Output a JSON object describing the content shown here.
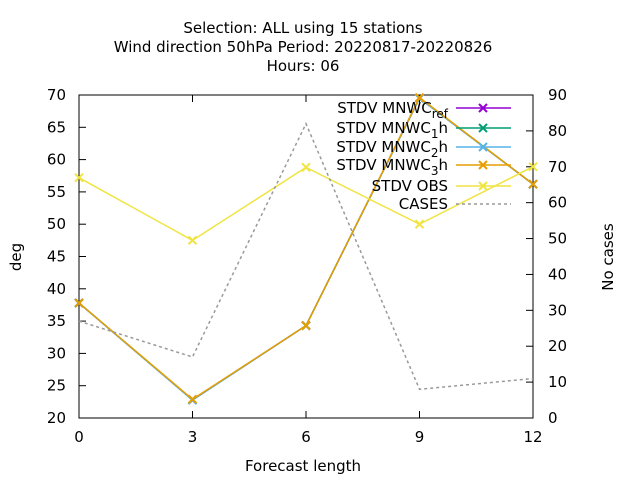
{
  "chart_data": {
    "type": "line",
    "title_lines": [
      "Selection: ALL using    15 stations",
      "Wind direction 50hPa   Period: 20220817-20220826",
      "Hours:  06"
    ],
    "xlabel": "Forecast length",
    "ylabel": "deg",
    "y2label": "No cases",
    "x": [
      0,
      3,
      6,
      9,
      12
    ],
    "xlim": [
      0,
      12
    ],
    "ylim": [
      20,
      70
    ],
    "y2lim": [
      0,
      90
    ],
    "xticks": [
      "0",
      "3",
      "6",
      "9",
      "12"
    ],
    "yticks": [
      "20",
      "25",
      "30",
      "35",
      "40",
      "45",
      "50",
      "55",
      "60",
      "65",
      "70"
    ],
    "y2ticks": [
      "0",
      "10",
      "20",
      "30",
      "40",
      "50",
      "60",
      "70",
      "80",
      "90"
    ],
    "grid": false,
    "legend_position": "top-right",
    "series": [
      {
        "name": "STDV MNWC_ref",
        "legend_main": "STDV MNWC",
        "legend_sub": "ref",
        "axis": "y",
        "color": "#9400d3",
        "marker": "x",
        "dash": "",
        "values": [
          37.8,
          22.8,
          34.3,
          69.5,
          56.2
        ]
      },
      {
        "name": "STDV MNWC_1h",
        "legend_main": "STDV MNWC",
        "legend_sub": "1",
        "legend_suffix": "h",
        "axis": "y",
        "color": "#009e73",
        "marker": "x",
        "dash": "",
        "values": [
          37.8,
          22.8,
          34.3,
          69.5,
          56.2
        ]
      },
      {
        "name": "STDV MNWC_2h",
        "legend_main": "STDV MNWC",
        "legend_sub": "2",
        "legend_suffix": "h",
        "axis": "y",
        "color": "#56b4e9",
        "marker": "x",
        "dash": "",
        "values": [
          37.8,
          22.8,
          34.3,
          69.5,
          56.2
        ]
      },
      {
        "name": "STDV MNWC_3h",
        "legend_main": "STDV MNWC",
        "legend_sub": "3",
        "legend_suffix": "h",
        "axis": "y",
        "color": "#e69f00",
        "marker": "x",
        "dash": "",
        "values": [
          37.8,
          22.9,
          34.3,
          69.6,
          56.2
        ]
      },
      {
        "name": "STDV OBS",
        "legend_main": "STDV OBS",
        "legend_sub": "",
        "axis": "y",
        "color": "#f0e442",
        "marker": "x",
        "dash": "",
        "values": [
          57.2,
          47.5,
          58.8,
          50.0,
          58.9
        ]
      },
      {
        "name": "CASES",
        "legend_main": "CASES",
        "legend_sub": "",
        "axis": "y2",
        "color": "#999999",
        "marker": "",
        "dash": "3,3",
        "values": [
          27,
          17,
          82,
          8,
          11
        ]
      }
    ]
  }
}
